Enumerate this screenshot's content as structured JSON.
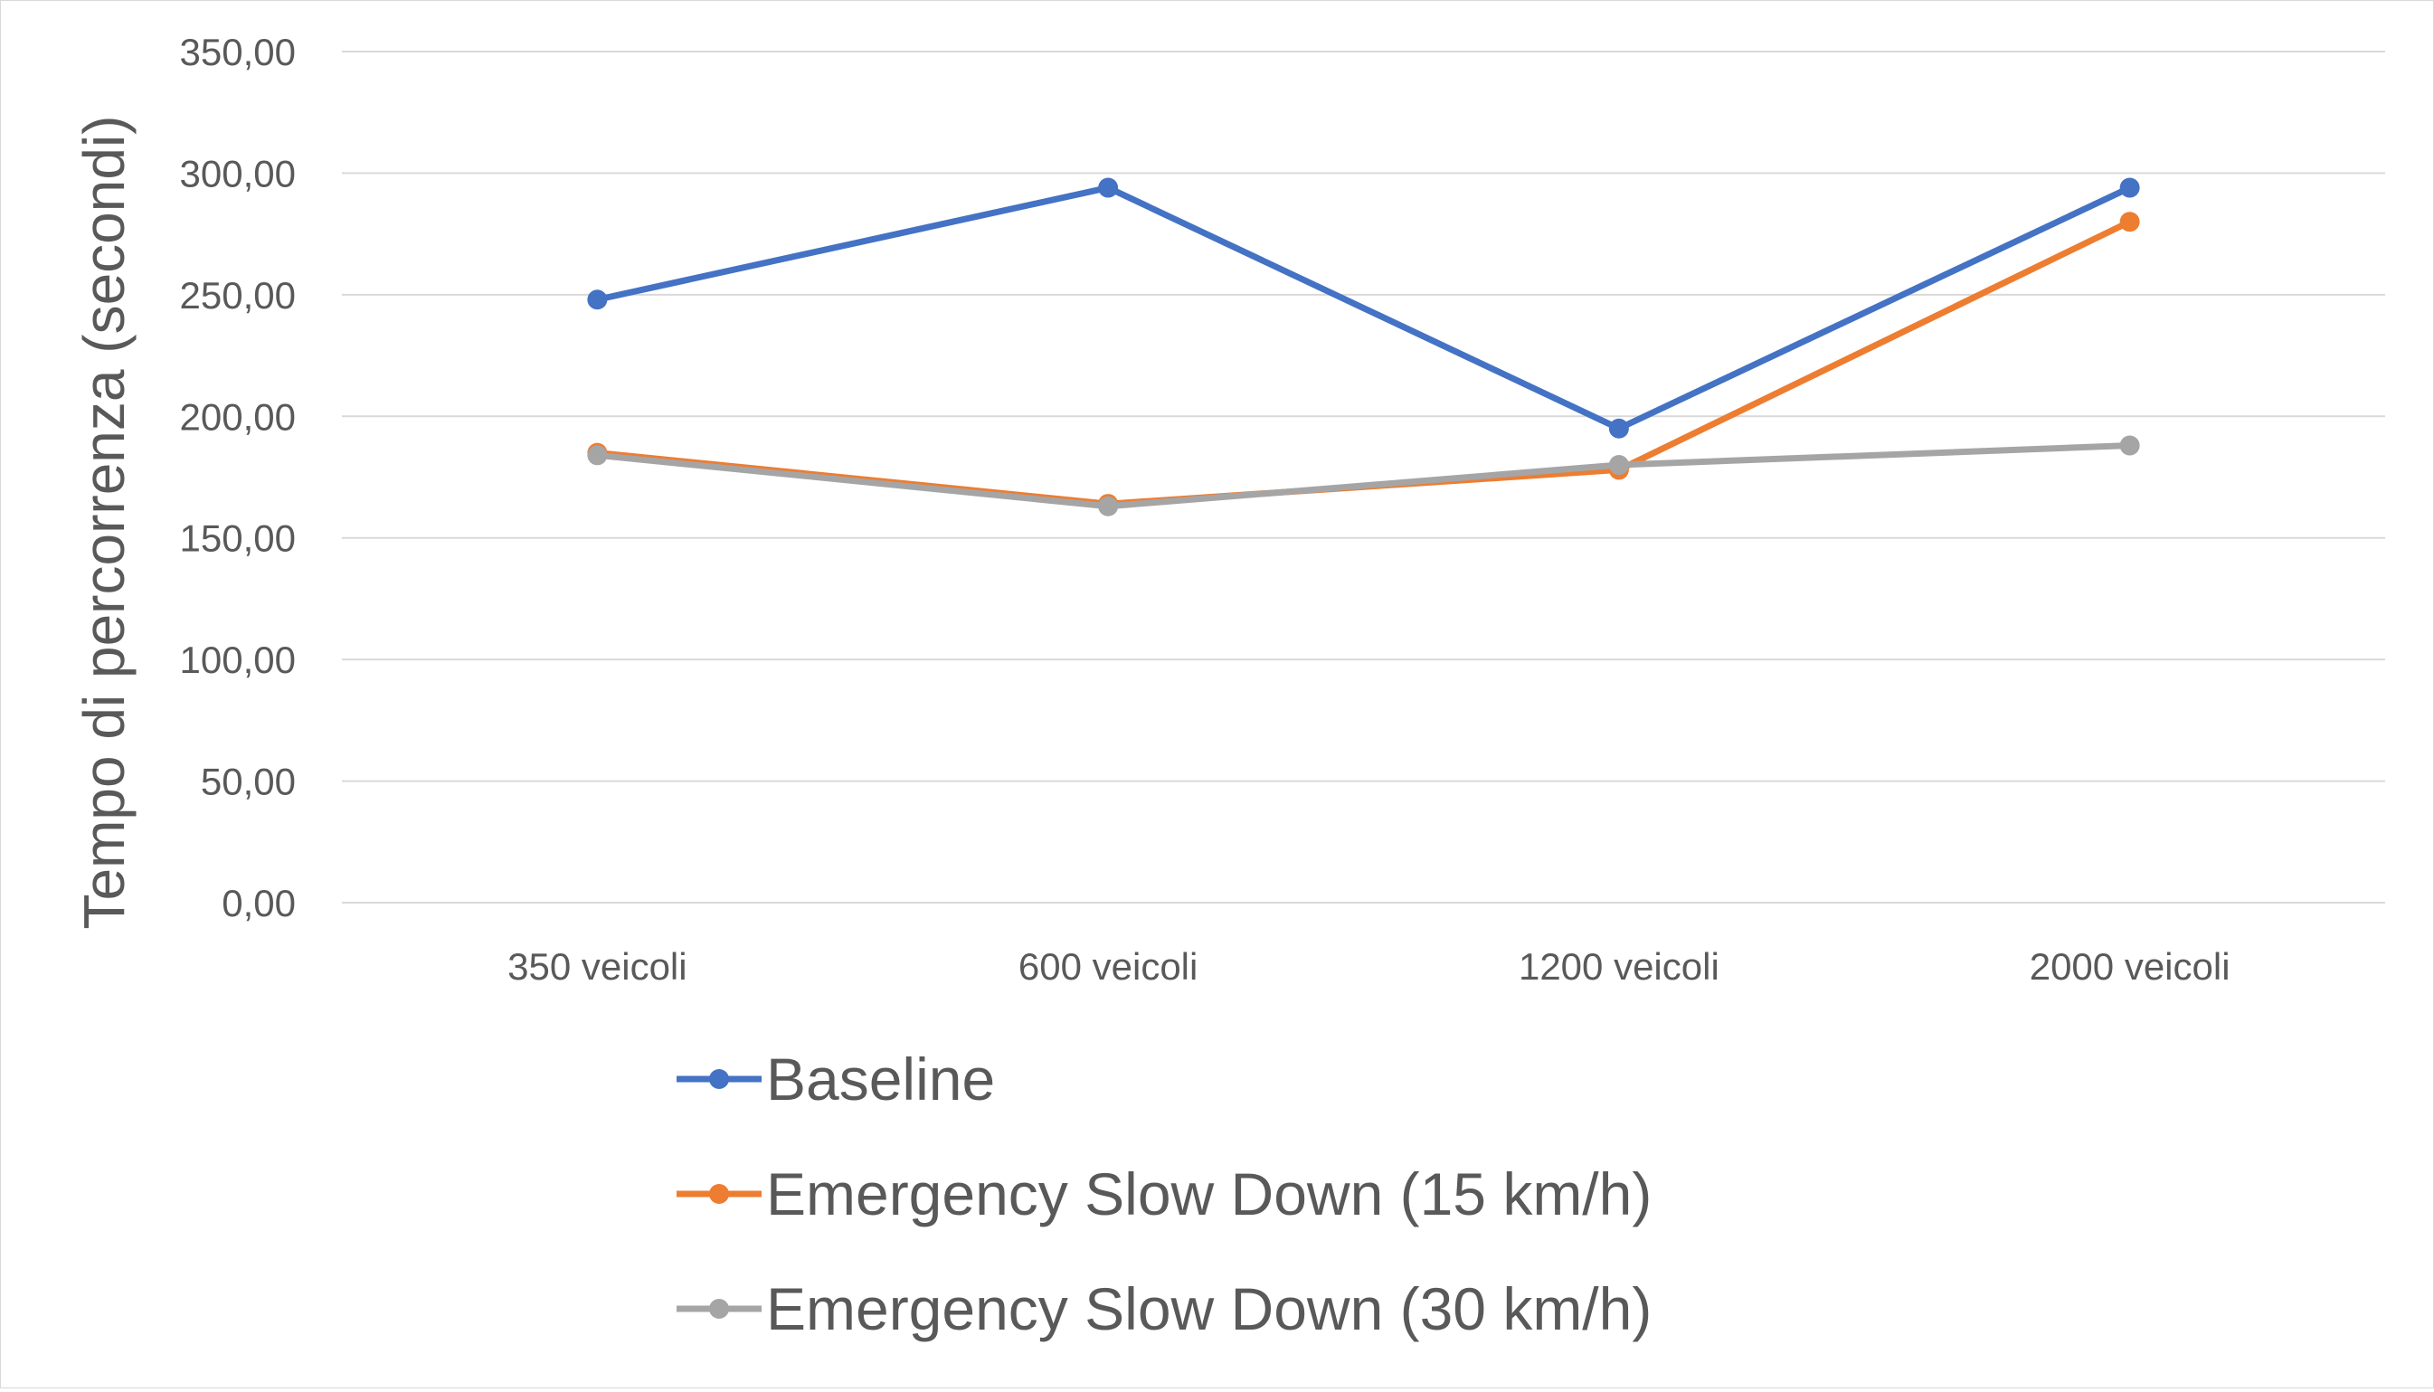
{
  "chart_data": {
    "type": "line",
    "ylabel": "Tempo di percorrenza (secondi)",
    "xlabel": "",
    "categories": [
      "350 veicoli",
      "600 veicoli",
      "1200 veicoli",
      "2000 veicoli"
    ],
    "ylim": [
      0,
      350
    ],
    "y_ticks": [
      "0,00",
      "50,00",
      "100,00",
      "150,00",
      "200,00",
      "250,00",
      "300,00",
      "350,00"
    ],
    "grid": true,
    "legend_position": "bottom",
    "series": [
      {
        "name": "Baseline",
        "color": "#4472C4",
        "values": [
          248,
          294,
          195,
          294
        ]
      },
      {
        "name": "Emergency Slow Down (15 km/h)",
        "color": "#ED7D31",
        "values": [
          185,
          164,
          178,
          280
        ]
      },
      {
        "name": "Emergency Slow Down (30 km/h)",
        "color": "#A5A5A5",
        "values": [
          184,
          163,
          180,
          188
        ]
      }
    ]
  }
}
